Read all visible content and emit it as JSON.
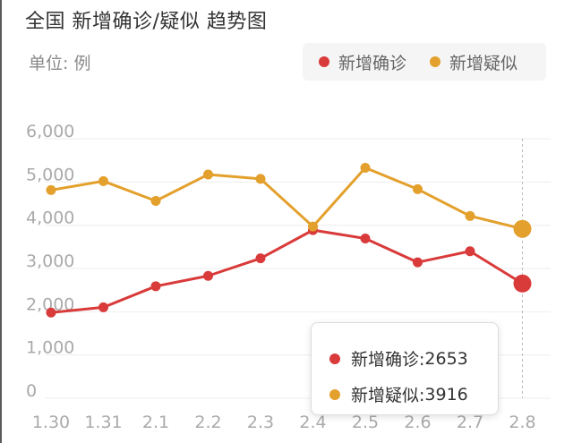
{
  "title": "全国 新增确诊/疑似 趋势图",
  "unit_label": "单位: 例",
  "colors": {
    "confirmed": "#d93a3a",
    "suspected": "#e3a02c",
    "grid": "#eeeeee",
    "axis_text": "#aaaaaa"
  },
  "legend": [
    {
      "label": "新增确诊",
      "color": "#d93a3a"
    },
    {
      "label": "新增疑似",
      "color": "#e3a02c"
    }
  ],
  "tooltip": {
    "rows": [
      {
        "label": "新增确诊: ",
        "value": "2653",
        "color": "#d93a3a"
      },
      {
        "label": "新增疑似: ",
        "value": "3916",
        "color": "#e3a02c"
      }
    ]
  },
  "chart_data": {
    "type": "line",
    "title": "全国 新增确诊/疑似 趋势图",
    "ylabel": "单位: 例",
    "ylim": [
      0,
      6000
    ],
    "yticks": [
      "0",
      "1,000",
      "2,000",
      "3,000",
      "4,000",
      "5,000",
      "6,000"
    ],
    "categories": [
      "1.30",
      "1.31",
      "2.1",
      "2.2",
      "2.3",
      "2.4",
      "2.5",
      "2.6",
      "2.7",
      "2.8"
    ],
    "series": [
      {
        "name": "新增确诊",
        "values": [
          1982,
          2102,
          2590,
          2829,
          3235,
          3887,
          3694,
          3143,
          3399,
          2653
        ]
      },
      {
        "name": "新增疑似",
        "values": [
          4812,
          5019,
          4562,
          5173,
          5072,
          3971,
          5328,
          4833,
          4214,
          3916
        ]
      }
    ],
    "highlight_index": 9,
    "grid": true,
    "legend_position": "top-right"
  }
}
